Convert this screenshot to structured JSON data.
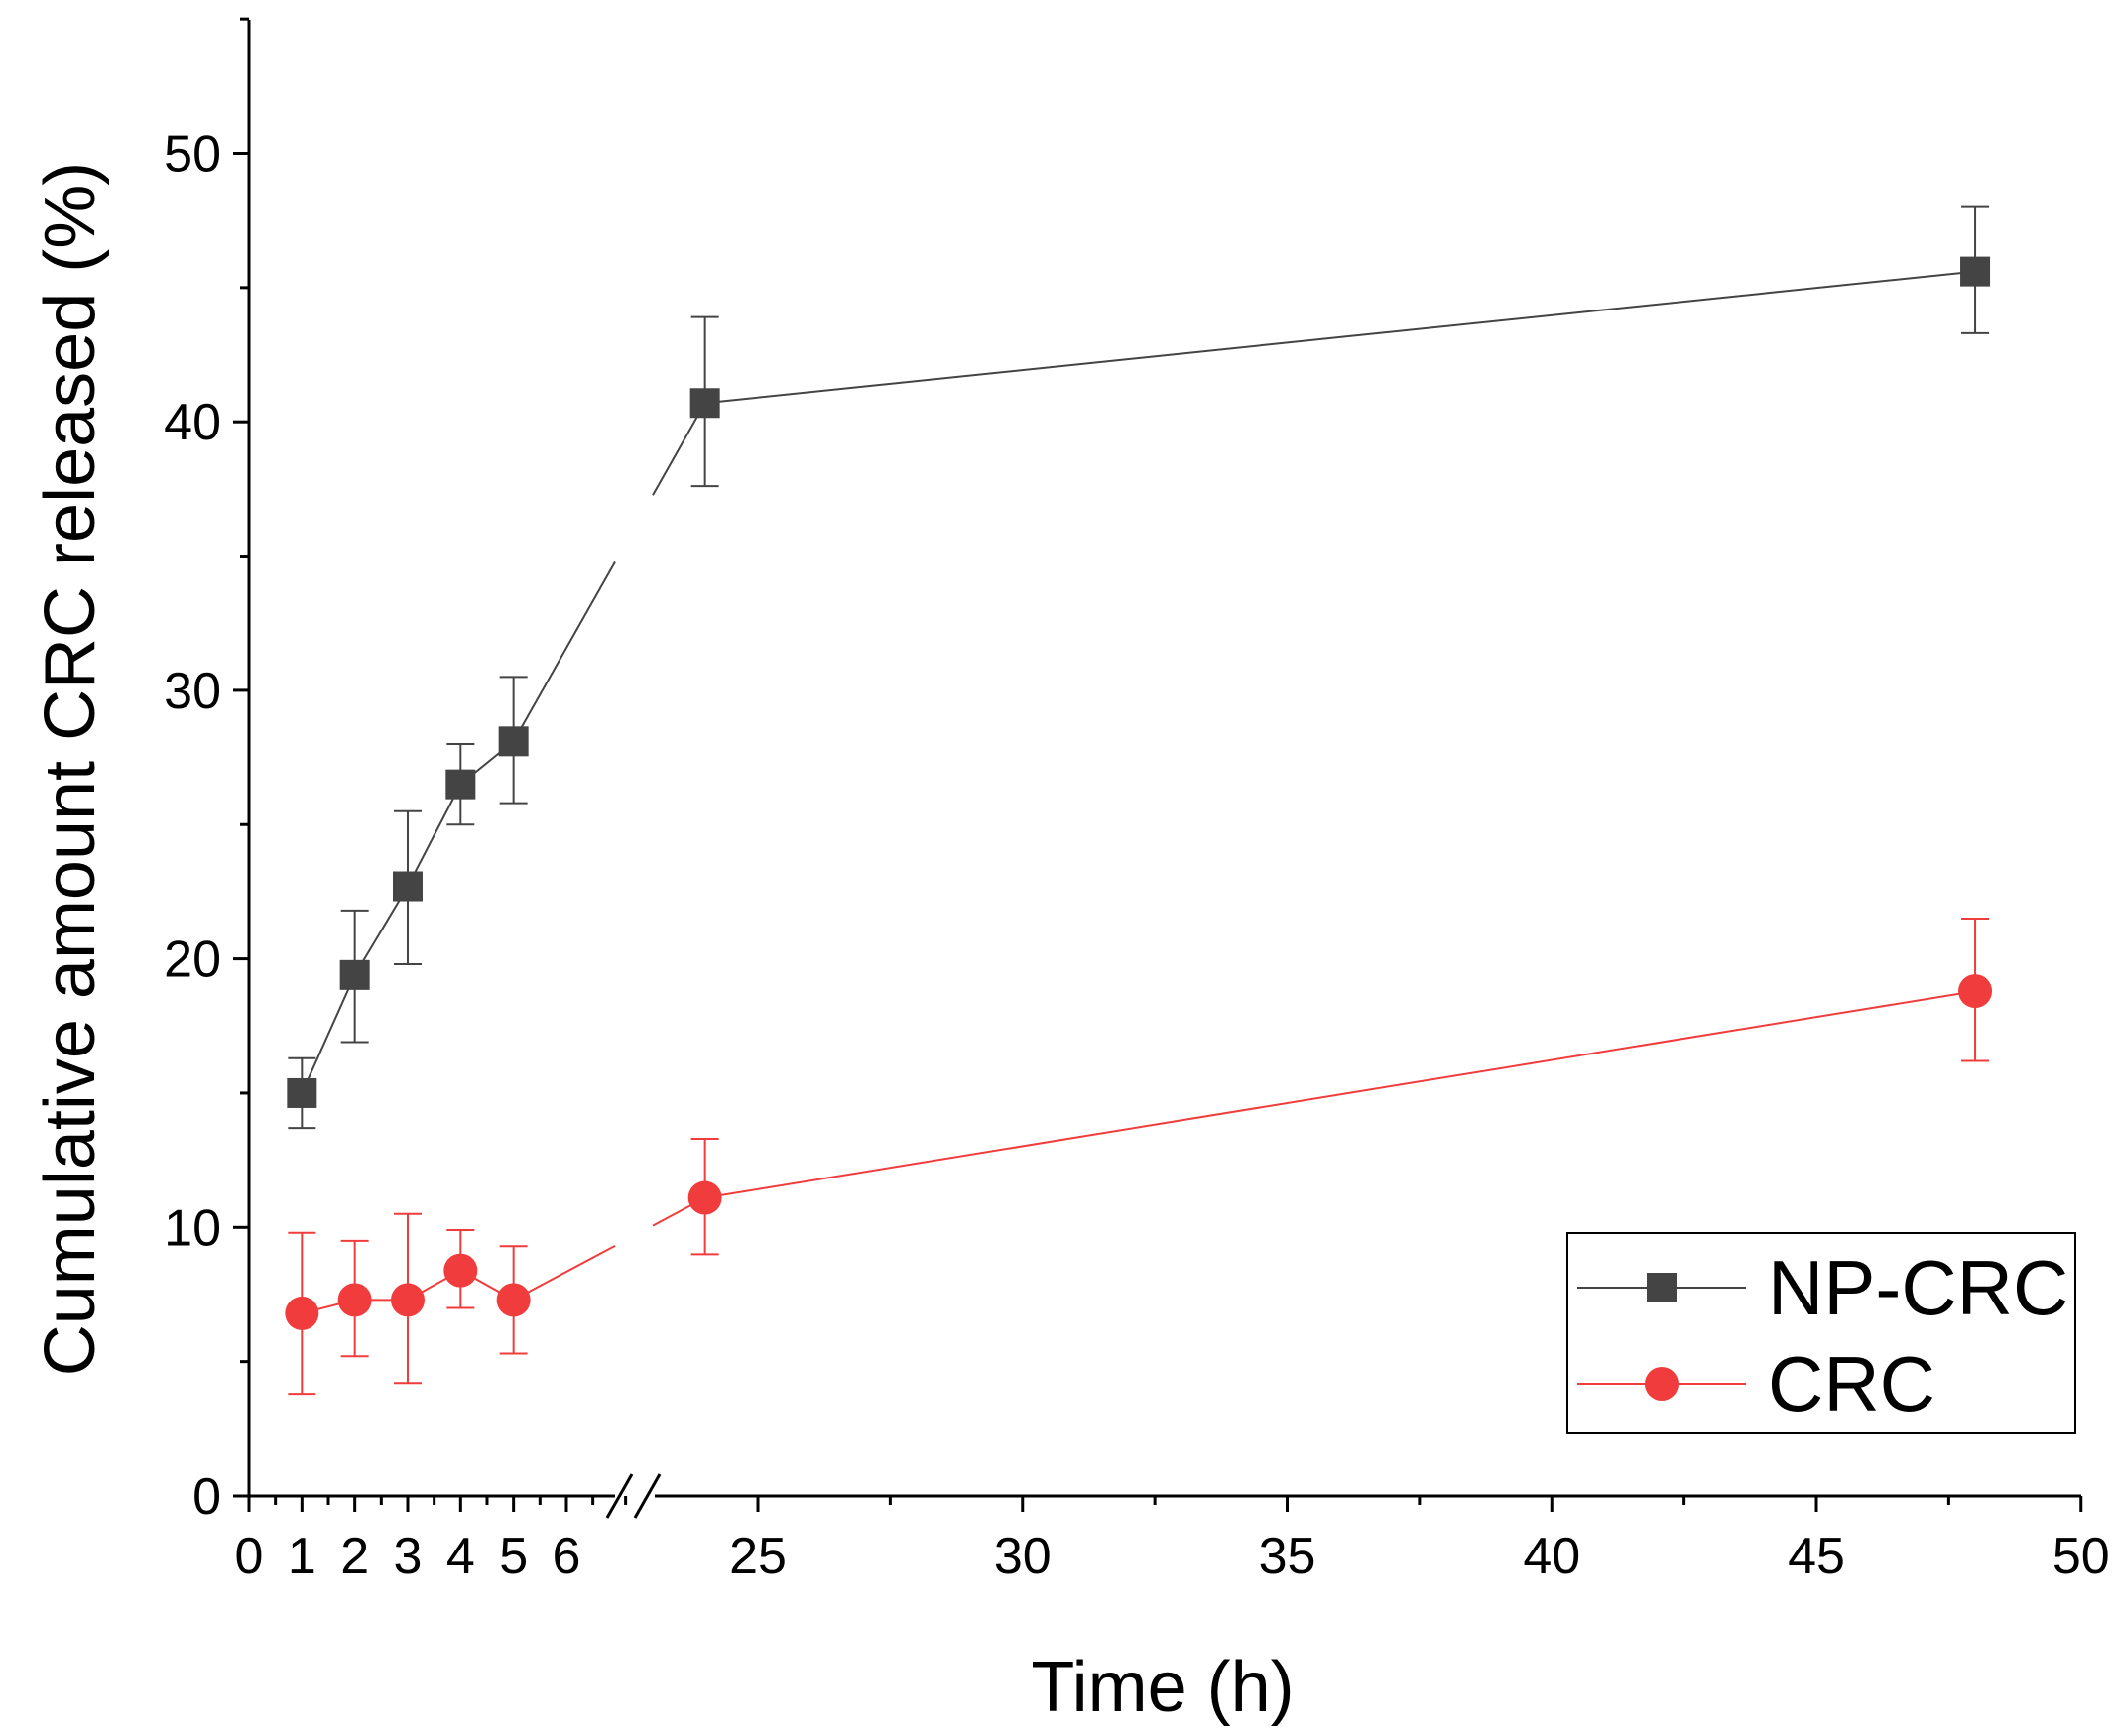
{
  "chart_data": {
    "type": "line",
    "title": "",
    "xlabel": "Time (h)",
    "ylabel": "Cumulative amount CRC released (%)",
    "ylim": [
      0,
      55
    ],
    "y_ticks": [
      0,
      10,
      20,
      30,
      40,
      50
    ],
    "x_axis_break": {
      "before": 6,
      "after": 22.5
    },
    "x_ticks_left": [
      0,
      1,
      2,
      3,
      4,
      5,
      6
    ],
    "x_ticks_right": [
      25,
      30,
      35,
      40,
      45,
      50
    ],
    "legend_position": "bottom-right",
    "grid": false,
    "series": [
      {
        "name": "NP-CRC",
        "color": "#444444",
        "marker": "square",
        "x": [
          1,
          2,
          3,
          4,
          5,
          24,
          48
        ],
        "y": [
          15.0,
          19.4,
          22.7,
          26.5,
          28.1,
          40.7,
          45.6
        ],
        "err_low": [
          13.7,
          16.9,
          19.8,
          25.0,
          25.8,
          37.6,
          43.3
        ],
        "err_high": [
          16.3,
          21.8,
          25.5,
          28.0,
          30.5,
          43.9,
          48.0
        ]
      },
      {
        "name": "CRC",
        "color": "#f03c3c",
        "marker": "circle",
        "x": [
          1,
          2,
          3,
          4,
          5,
          24,
          48
        ],
        "y": [
          6.8,
          7.3,
          7.3,
          8.4,
          7.3,
          11.1,
          18.8
        ],
        "err_low": [
          3.8,
          5.2,
          4.2,
          7.0,
          5.3,
          9.0,
          16.2
        ],
        "err_high": [
          9.8,
          9.5,
          10.5,
          9.9,
          9.3,
          13.3,
          21.5
        ]
      }
    ]
  }
}
